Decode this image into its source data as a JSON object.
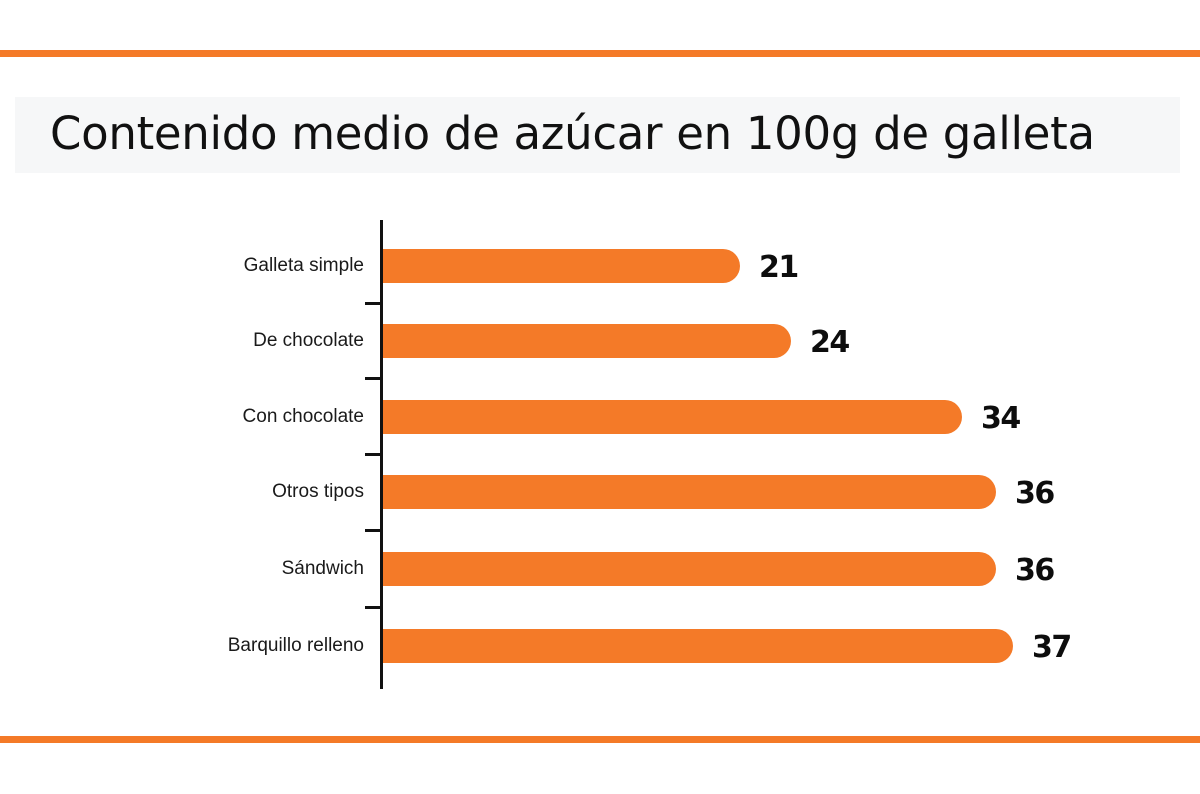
{
  "colors": {
    "accent": "#F47A28",
    "text": "#111111",
    "title_band": "#f6f7f8"
  },
  "title": "Contenido medio de azúcar en 100g de galleta",
  "chart_data": {
    "type": "bar",
    "orientation": "horizontal",
    "title": "Contenido medio de azúcar en 100g de galleta",
    "xlabel": "",
    "ylabel": "",
    "categories": [
      "Galleta simple",
      "De chocolate",
      "Con chocolate",
      "Otros tipos",
      "Sándwich",
      "Barquillo relleno"
    ],
    "values": [
      21,
      24,
      34,
      36,
      36,
      37
    ],
    "value_labels": [
      "21",
      "24",
      "34",
      "36",
      "36",
      "37"
    ],
    "grid": false,
    "legend": null,
    "xlim": [
      0,
      40
    ]
  }
}
